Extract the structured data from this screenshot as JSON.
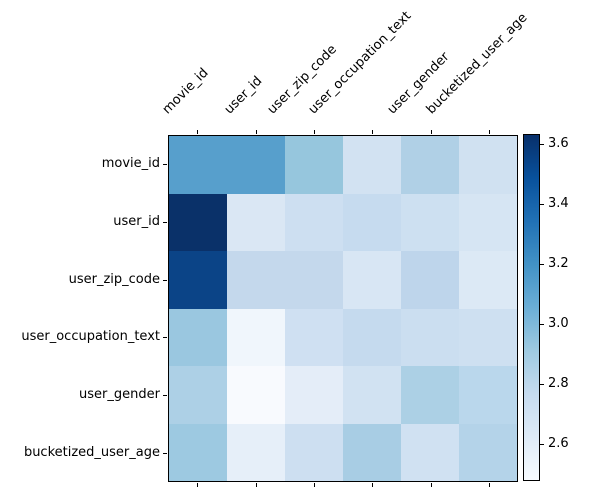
{
  "chart_data": {
    "type": "heatmap",
    "title": "",
    "xlabel": "",
    "ylabel": "",
    "grid": false,
    "rows": [
      "movie_id",
      "user_id",
      "user_zip_code",
      "user_occupation_text",
      "user_gender",
      "bucketized_user_age"
    ],
    "columns": [
      "movie_id",
      "user_id",
      "user_zip_code",
      "user_occupation_text",
      "user_gender",
      "bucketized_user_age"
    ],
    "values": [
      [
        3.14,
        3.14,
        2.93,
        2.68,
        2.84,
        2.7
      ],
      [
        3.63,
        2.63,
        2.7,
        2.74,
        2.7,
        2.66
      ],
      [
        3.53,
        2.76,
        2.76,
        2.64,
        2.79,
        2.62
      ],
      [
        2.93,
        2.52,
        2.7,
        2.75,
        2.72,
        2.71
      ],
      [
        2.84,
        2.49,
        2.58,
        2.68,
        2.85,
        2.8
      ],
      [
        2.92,
        2.57,
        2.7,
        2.86,
        2.69,
        2.81
      ]
    ],
    "cell_colors": [
      [
        "#579fcc",
        "#579fcc",
        "#96c6dd",
        "#d2e2f2",
        "#b0d0e6",
        "#d0e1f1"
      ],
      [
        "#0a3169",
        "#dae7f4",
        "#cddff1",
        "#c6dbef",
        "#cde0f1",
        "#d6e5f3"
      ],
      [
        "#0b4487",
        "#c4d8ec",
        "#c4d8ec",
        "#d8e6f4",
        "#bed5eb",
        "#dce9f5"
      ],
      [
        "#9ac7e0",
        "#f0f6fc",
        "#cfe0f2",
        "#c5daee",
        "#cbdef0",
        "#cee0f1"
      ],
      [
        "#add0e6",
        "#f8fafe",
        "#e4edf8",
        "#d1e2f2",
        "#acd0e5",
        "#bad7ec"
      ],
      [
        "#9dc9e1",
        "#e6eff9",
        "#cddff1",
        "#a8cde4",
        "#d0e1f2",
        "#b4d3e9"
      ]
    ],
    "colormap": "Blues",
    "colorbar": {
      "position": "right",
      "vmin": 2.477,
      "vmax": 3.633,
      "ticks": [
        2.6,
        2.8,
        3.0,
        3.2,
        3.4,
        3.6
      ],
      "tick_labels": [
        "2.6",
        "2.8",
        "3.0",
        "3.2",
        "3.4",
        "3.6"
      ],
      "gradient_stops_bottom_to_top": [
        "#f7fbff",
        "#deebf7",
        "#c6dbef",
        "#9ecae1",
        "#6baed6",
        "#4292c6",
        "#2171b5",
        "#08519c",
        "#08306b"
      ]
    }
  },
  "colors": {
    "background": "#ffffff",
    "axis": "#000000",
    "text": "#000000"
  }
}
